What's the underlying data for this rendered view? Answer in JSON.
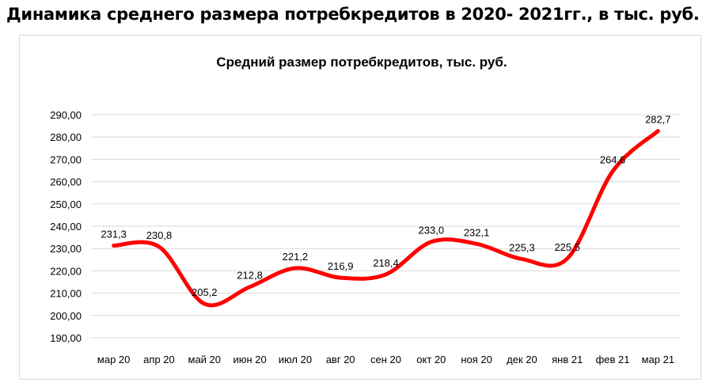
{
  "heading": "Динамика среднего размера потребкредитов в 2020- 2021гг., в тыс. руб.",
  "chart_data": {
    "type": "line",
    "title": "Средний размер потребкредитов,  тыс. руб.",
    "categories": [
      "мар 20",
      "апр 20",
      "май 20",
      "июн 20",
      "июл 20",
      "авг 20",
      "сен 20",
      "окт 20",
      "ноя 20",
      "дек 20",
      "янв 21",
      "фев 21",
      "мар 21"
    ],
    "series": [
      {
        "values": [
          231.3,
          230.8,
          205.2,
          212.8,
          221.2,
          216.9,
          218.4,
          233.0,
          232.1,
          225.3,
          225.5,
          264.6,
          282.7
        ],
        "labels": [
          "231,3",
          "230,8",
          "205,2",
          "212,8",
          "221,2",
          "216,9",
          "218,4",
          "233,0",
          "232,1",
          "225,3",
          "225,5",
          "264,6",
          "282,7"
        ],
        "color": "#ff0000"
      }
    ],
    "yticks": [
      "190,00",
      "200,00",
      "210,00",
      "220,00",
      "230,00",
      "240,00",
      "250,00",
      "260,00",
      "270,00",
      "280,00",
      "290,00"
    ],
    "ylim": [
      190,
      290
    ],
    "grid": true,
    "legend": "none",
    "smooth": true
  }
}
